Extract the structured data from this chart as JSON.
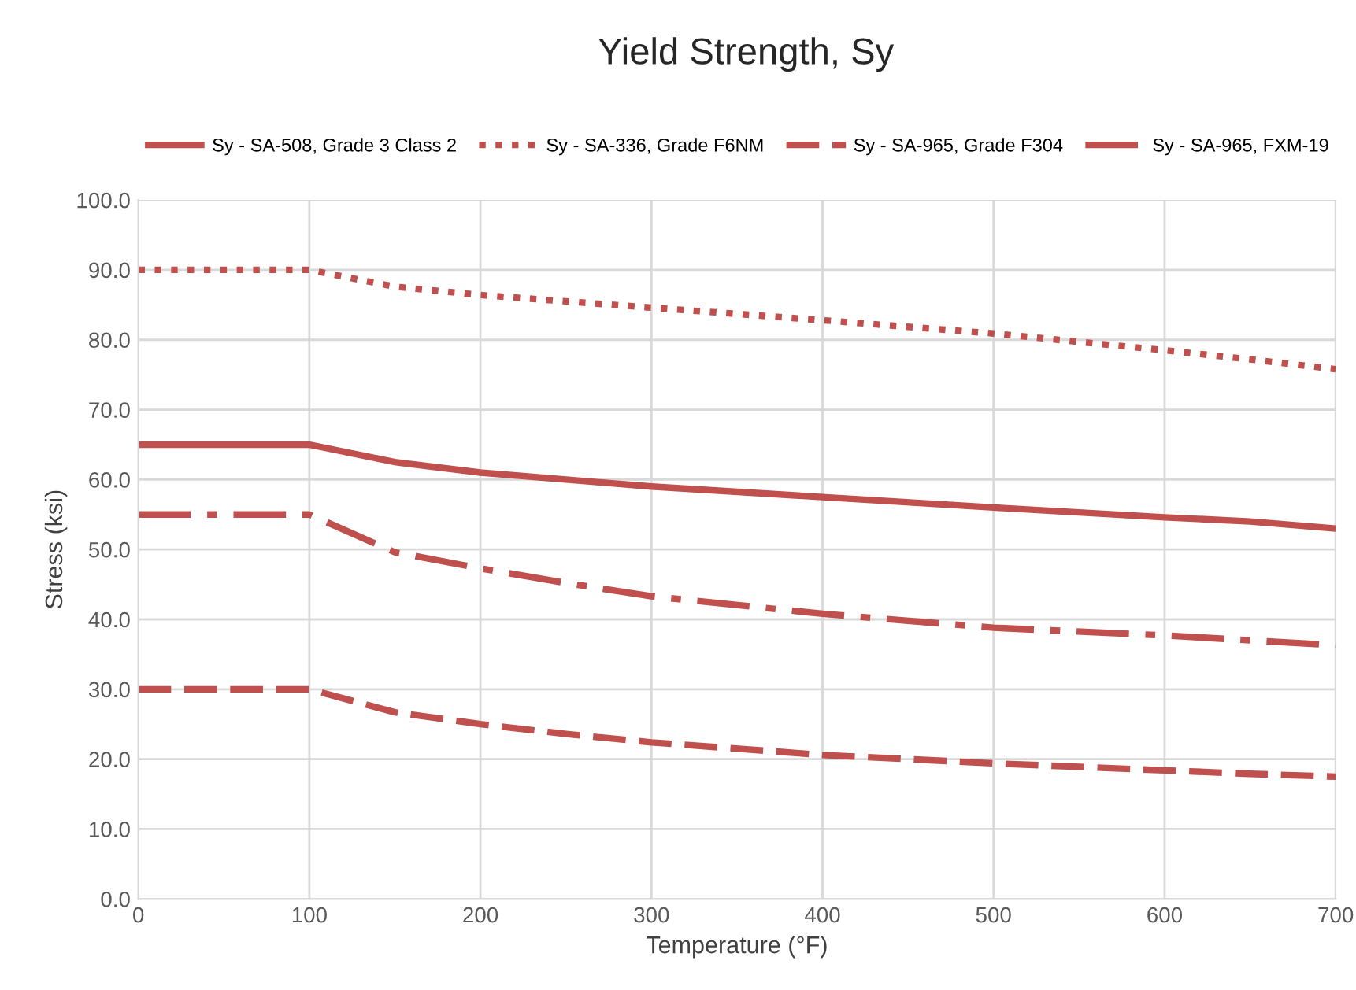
{
  "chart_data": {
    "type": "line",
    "title": "Yield Strength, Sy",
    "xlabel": "Temperature (°F)",
    "ylabel": "Stress (ksi)",
    "x": [
      0,
      100,
      150,
      200,
      250,
      300,
      400,
      500,
      600,
      650,
      700
    ],
    "series": [
      {
        "name": "Sy - SA-508, Grade 3 Class 2",
        "color": "#c0504d",
        "line_style": "solid",
        "values": [
          65,
          65,
          62.5,
          61,
          60,
          59,
          57.5,
          56,
          54.6,
          54,
          53
        ]
      },
      {
        "name": "Sy - SA-336, Grade F6NM",
        "color": "#c0504d",
        "line_style": "dotted",
        "values": [
          90,
          90,
          87.6,
          86.4,
          85.5,
          84.6,
          82.8,
          80.9,
          78.5,
          77.2,
          75.8
        ]
      },
      {
        "name": "Sy - SA-965, Grade F304",
        "color": "#c0504d",
        "line_style": "dashed",
        "values": [
          30,
          30,
          26.7,
          25,
          23.6,
          22.4,
          20.6,
          19.4,
          18.4,
          17.9,
          17.5
        ]
      },
      {
        "name": "Sy - SA-965, FXM-19",
        "color": "#c0504d",
        "line_style": "dashdot",
        "values": [
          55,
          55,
          49.6,
          47.3,
          45.2,
          43.3,
          40.8,
          38.8,
          37.7,
          37,
          36.3
        ]
      }
    ],
    "xlim": [
      0,
      700
    ],
    "xticks": [
      0,
      100,
      200,
      300,
      400,
      500,
      600,
      700
    ],
    "ylim": [
      0,
      100
    ],
    "yticks": [
      {
        "value": 0,
        "label": "0.0"
      },
      {
        "value": 10,
        "label": "10.0"
      },
      {
        "value": 20,
        "label": "20.0"
      },
      {
        "value": 30,
        "label": "30.0"
      },
      {
        "value": 40,
        "label": "40.0"
      },
      {
        "value": 50,
        "label": "50.0"
      },
      {
        "value": 60,
        "label": "60.0"
      },
      {
        "value": 70,
        "label": "70.0"
      },
      {
        "value": 80,
        "label": "80.0"
      },
      {
        "value": 90,
        "label": "90.0"
      },
      {
        "value": 100,
        "label": "100.0"
      }
    ],
    "grid": true,
    "legend": "top",
    "marker": "none"
  }
}
